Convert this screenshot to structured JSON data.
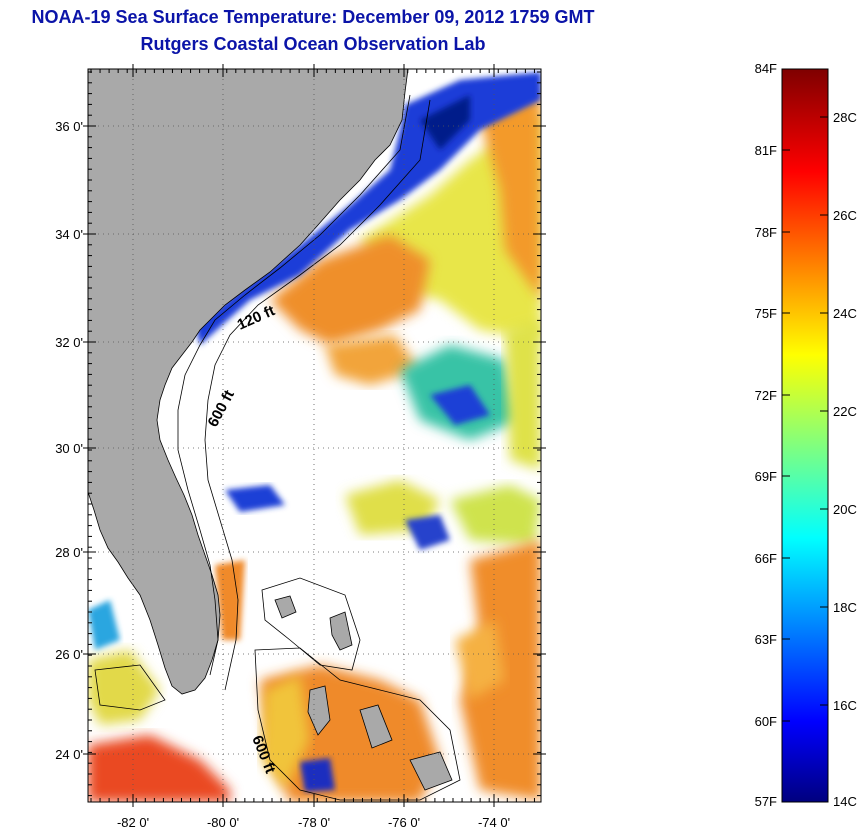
{
  "header": {
    "title": "NOAA-19 Sea Surface Temperature:  December 09, 2012 1759 GMT",
    "subtitle": "Rutgers Coastal Ocean Observation Lab"
  },
  "map": {
    "lat_labels": [
      "36 0'",
      "34 0'",
      "32 0'",
      "30 0'",
      "28 0'",
      "26 0'",
      "24 0'"
    ],
    "lon_labels": [
      "-82 0'",
      "-80 0'",
      "-78 0'",
      "-76 0'",
      "-74 0'"
    ],
    "isobath_labels": [
      "120 ft",
      "600 ft",
      "600 ft"
    ],
    "colors": {
      "land": "#a9a9a9",
      "cloud": "#ffffff"
    }
  },
  "colorbar": {
    "fahrenheit_labels": [
      "84F",
      "81F",
      "78F",
      "75F",
      "72F",
      "69F",
      "66F",
      "63F",
      "60F",
      "57F"
    ],
    "celsius_labels": [
      "28C",
      "26C",
      "24C",
      "22C",
      "20C",
      "18C",
      "16C",
      "14C"
    ],
    "min_c": 14,
    "max_c": 29
  }
}
